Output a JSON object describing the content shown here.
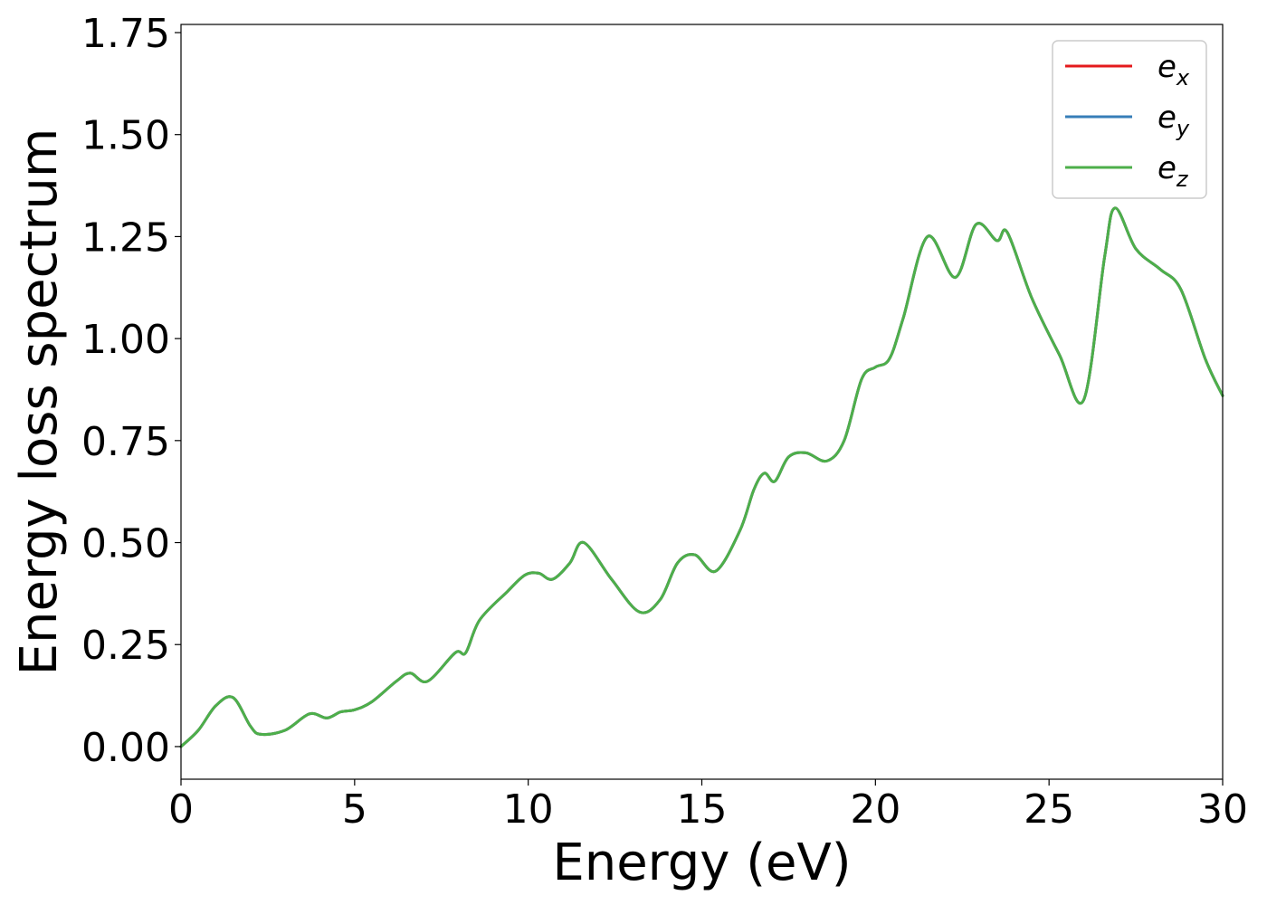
{
  "chart_data": {
    "type": "line",
    "title": "",
    "xlabel": "Energy (eV)",
    "ylabel": "Energy loss spectrum",
    "xlim": [
      0,
      30
    ],
    "ylim": [
      -0.08,
      1.77
    ],
    "xticks": [
      0,
      5,
      10,
      15,
      20,
      25,
      30
    ],
    "xtick_labels": [
      "0",
      "5",
      "10",
      "15",
      "20",
      "25",
      "30"
    ],
    "yticks": [
      0,
      0.25,
      0.5,
      0.75,
      1.0,
      1.25,
      1.5,
      1.75
    ],
    "ytick_labels": [
      "0.00",
      "0.25",
      "0.50",
      "0.75",
      "1.00",
      "1.25",
      "1.50",
      "1.75"
    ],
    "grid": false,
    "legend_position": "top-right",
    "x": [
      0,
      0.5,
      1.0,
      1.5,
      2.0,
      2.3,
      3.0,
      3.7,
      4.2,
      4.6,
      5.0,
      5.5,
      6.2,
      6.6,
      7.1,
      7.9,
      8.2,
      8.6,
      9.4,
      9.9,
      10.3,
      10.7,
      11.2,
      11.6,
      12.4,
      13.2,
      13.8,
      14.3,
      14.8,
      15.4,
      16.1,
      16.5,
      16.8,
      17.1,
      17.5,
      18.0,
      18.6,
      19.1,
      19.6,
      20.0,
      20.4,
      20.8,
      21.5,
      22.3,
      22.9,
      23.5,
      23.8,
      24.5,
      25.3,
      26.0,
      26.6,
      26.9,
      27.5,
      28.2,
      28.8,
      29.5,
      30.0
    ],
    "series": [
      {
        "name": "e",
        "subscript": "x",
        "color": "#e41a1c",
        "values": [
          0,
          0.04,
          0.1,
          0.12,
          0.05,
          0.03,
          0.04,
          0.08,
          0.07,
          0.085,
          0.09,
          0.11,
          0.16,
          0.18,
          0.16,
          0.23,
          0.23,
          0.31,
          0.38,
          0.42,
          0.425,
          0.41,
          0.45,
          0.5,
          0.41,
          0.33,
          0.36,
          0.45,
          0.47,
          0.43,
          0.53,
          0.63,
          0.67,
          0.65,
          0.71,
          0.72,
          0.7,
          0.75,
          0.9,
          0.93,
          0.95,
          1.05,
          1.25,
          1.15,
          1.28,
          1.24,
          1.26,
          1.1,
          0.96,
          0.85,
          1.2,
          1.32,
          1.22,
          1.17,
          1.12,
          0.95,
          0.86
        ]
      },
      {
        "name": "e",
        "subscript": "y",
        "color": "#377eb8",
        "values": [
          0,
          0.04,
          0.1,
          0.12,
          0.05,
          0.03,
          0.04,
          0.08,
          0.07,
          0.085,
          0.09,
          0.11,
          0.16,
          0.18,
          0.16,
          0.23,
          0.23,
          0.31,
          0.38,
          0.42,
          0.425,
          0.41,
          0.45,
          0.5,
          0.41,
          0.33,
          0.36,
          0.45,
          0.47,
          0.43,
          0.53,
          0.63,
          0.67,
          0.65,
          0.71,
          0.72,
          0.7,
          0.75,
          0.9,
          0.93,
          0.95,
          1.05,
          1.25,
          1.15,
          1.28,
          1.24,
          1.26,
          1.1,
          0.96,
          0.85,
          1.2,
          1.32,
          1.22,
          1.17,
          1.12,
          0.95,
          0.86
        ]
      },
      {
        "name": "e",
        "subscript": "z",
        "color": "#4daf4a",
        "values": [
          0,
          0.04,
          0.1,
          0.12,
          0.05,
          0.03,
          0.04,
          0.08,
          0.07,
          0.085,
          0.09,
          0.11,
          0.16,
          0.18,
          0.16,
          0.23,
          0.23,
          0.31,
          0.38,
          0.42,
          0.425,
          0.41,
          0.45,
          0.5,
          0.41,
          0.33,
          0.36,
          0.45,
          0.47,
          0.43,
          0.53,
          0.63,
          0.67,
          0.65,
          0.71,
          0.72,
          0.7,
          0.75,
          0.9,
          0.93,
          0.95,
          1.05,
          1.25,
          1.15,
          1.28,
          1.24,
          1.26,
          1.1,
          0.96,
          0.85,
          1.2,
          1.32,
          1.22,
          1.17,
          1.12,
          0.95,
          0.86
        ]
      }
    ]
  }
}
